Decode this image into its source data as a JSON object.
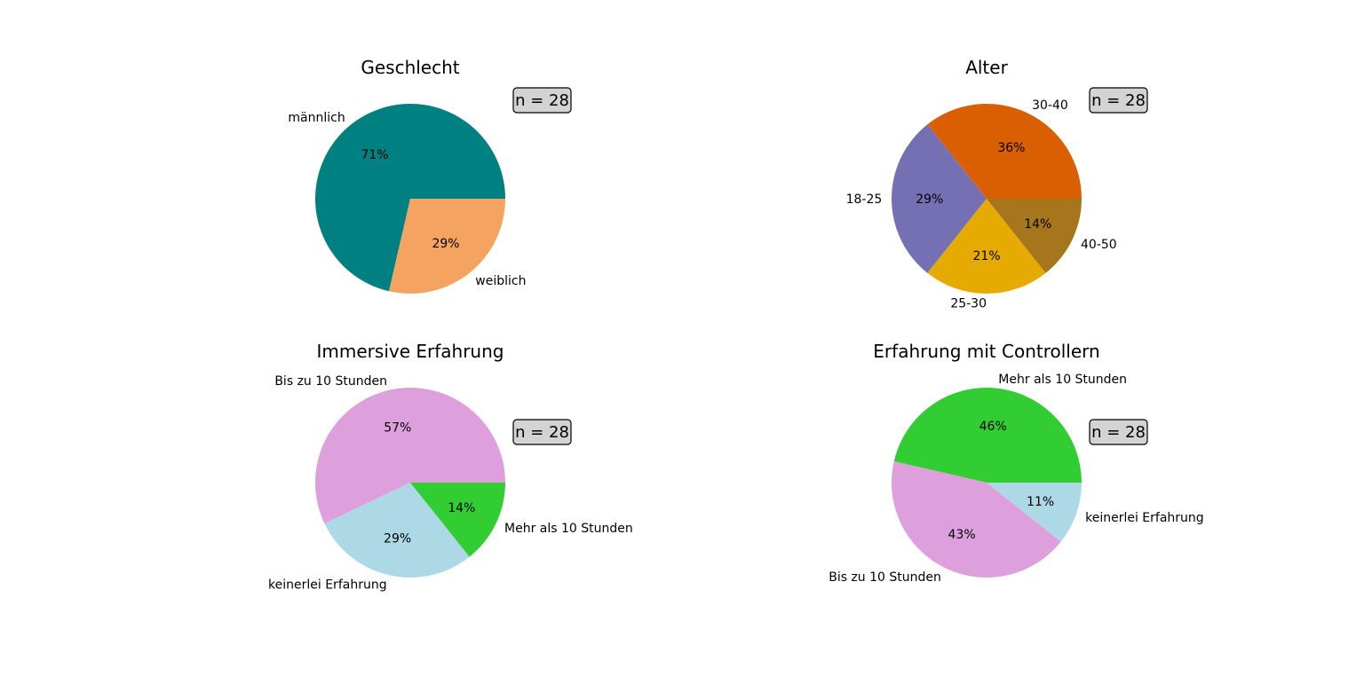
{
  "chart_data": [
    {
      "type": "pie",
      "title": "Geschlecht",
      "n_label": "n = 28",
      "labels": [
        "männlich",
        "weiblich"
      ],
      "values": [
        71.4,
        28.6
      ],
      "percent_labels": [
        "71%",
        "29%"
      ],
      "colors": [
        "#008080",
        "#f4a460"
      ]
    },
    {
      "type": "pie",
      "title": "Alter",
      "n_label": "n = 28",
      "labels": [
        "30-40",
        "18-25",
        "25-30",
        "40-50"
      ],
      "values": [
        35.7,
        28.6,
        21.4,
        14.3
      ],
      "percent_labels": [
        "36%",
        "29%",
        "21%",
        "14%"
      ],
      "colors": [
        "#d95f02",
        "#7570b3",
        "#e6ab02",
        "#a6761d"
      ]
    },
    {
      "type": "pie",
      "title": "Immersive Erfahrung",
      "n_label": "n = 28",
      "labels": [
        "Bis zu 10 Stunden",
        "keinerlei Erfahrung",
        "Mehr als 10 Stunden"
      ],
      "values": [
        57.1,
        28.6,
        14.3
      ],
      "percent_labels": [
        "57%",
        "29%",
        "14%"
      ],
      "colors": [
        "#dda0dd",
        "#add8e6",
        "#32cd32"
      ]
    },
    {
      "type": "pie",
      "title": "Erfahrung mit Controllern",
      "n_label": "n = 28",
      "labels": [
        "Mehr als 10 Stunden",
        "Bis zu 10 Stunden",
        "keinerlei Erfahrung"
      ],
      "values": [
        46.4,
        42.9,
        10.7
      ],
      "percent_labels": [
        "46%",
        "43%",
        "11%"
      ],
      "colors": [
        "#32cd32",
        "#dda0dd",
        "#add8e6"
      ]
    }
  ]
}
